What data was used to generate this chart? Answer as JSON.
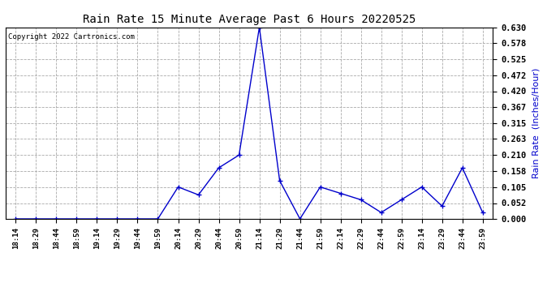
{
  "title": "Rain Rate 15 Minute Average Past 6 Hours 20220525",
  "ylabel": "Rain Rate  (Inches/Hour)",
  "copyright": "Copyright 2022 Cartronics.com",
  "line_color": "#0000cc",
  "background_color": "#ffffff",
  "grid_color": "#aaaaaa",
  "title_color": "#000000",
  "ylabel_color": "#0000cc",
  "x_labels": [
    "18:14",
    "18:29",
    "18:44",
    "18:59",
    "19:14",
    "19:29",
    "19:44",
    "19:59",
    "20:14",
    "20:29",
    "20:44",
    "20:59",
    "21:14",
    "21:29",
    "21:44",
    "21:59",
    "22:14",
    "22:29",
    "22:44",
    "22:59",
    "23:14",
    "23:29",
    "23:44",
    "23:59"
  ],
  "y_values": [
    0.0,
    0.0,
    0.0,
    0.0,
    0.0,
    0.0,
    0.0,
    0.0,
    0.105,
    0.079,
    0.168,
    0.21,
    0.63,
    0.126,
    0.0,
    0.105,
    0.084,
    0.063,
    0.021,
    0.063,
    0.105,
    0.042,
    0.168,
    0.021
  ],
  "yticks": [
    0.0,
    0.052,
    0.105,
    0.158,
    0.21,
    0.263,
    0.315,
    0.367,
    0.42,
    0.472,
    0.525,
    0.578,
    0.63
  ],
  "ylim": [
    0.0,
    0.63
  ],
  "marker_size": 4
}
